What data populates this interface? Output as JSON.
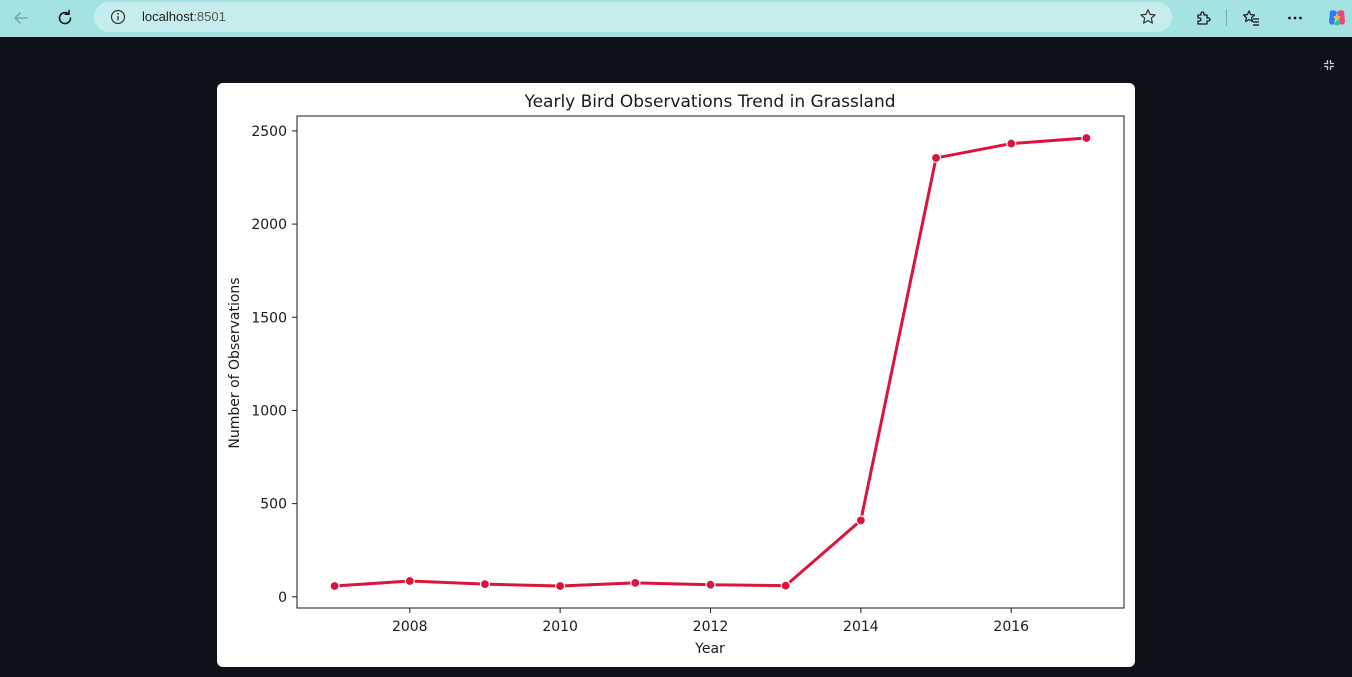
{
  "browser": {
    "url_host": "localhost",
    "url_port": ":8501",
    "icons": [
      "back-arrow-icon",
      "reload-icon",
      "site-info-icon",
      "star-icon",
      "extensions-icon",
      "favorites-icon",
      "more-icon",
      "copilot-icon"
    ]
  },
  "app": {
    "background": "#0e1117",
    "fullscreen_icon": "exit-fullscreen-icon"
  },
  "chart_data": {
    "type": "line",
    "title": "Yearly Bird Observations Trend in Grassland",
    "xlabel": "Year",
    "ylabel": "Number of Observations",
    "x": [
      2007,
      2008,
      2009,
      2010,
      2011,
      2012,
      2013,
      2014,
      2015,
      2016,
      2017
    ],
    "y": [
      58,
      85,
      68,
      58,
      75,
      65,
      60,
      410,
      2355,
      2432,
      2462
    ],
    "xticks": [
      2008,
      2010,
      2012,
      2014,
      2016
    ],
    "yticks": [
      0,
      500,
      1000,
      1500,
      2000,
      2500
    ],
    "xlim": [
      2006.5,
      2017.5
    ],
    "ylim": [
      -60,
      2580
    ],
    "line_color": "#dc143c",
    "marker": "circle",
    "grid": false,
    "legend": "none"
  }
}
